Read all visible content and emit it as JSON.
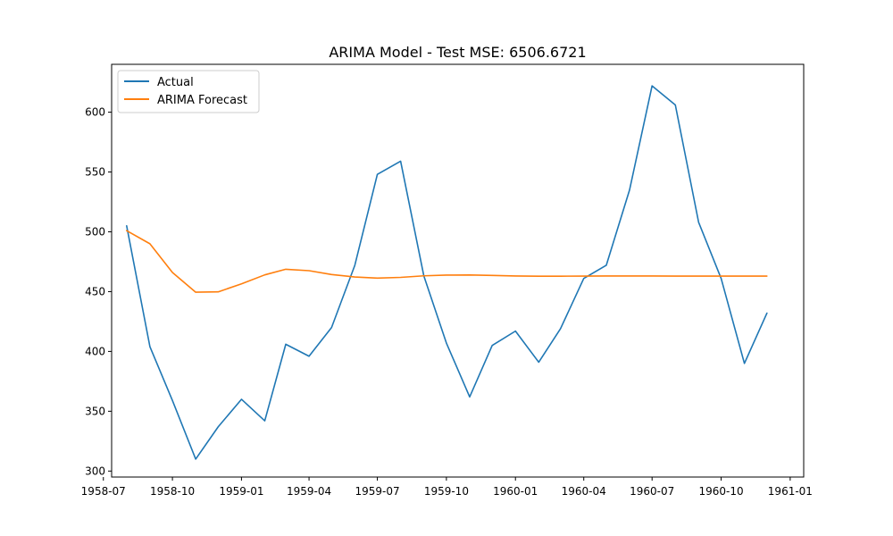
{
  "chart_data": {
    "type": "line",
    "title": "ARIMA Model - Test MSE: 6506.6721",
    "xlabel": "",
    "ylabel": "",
    "x": [
      "1958-08",
      "1958-09",
      "1958-10",
      "1958-11",
      "1958-12",
      "1959-01",
      "1959-02",
      "1959-03",
      "1959-04",
      "1959-05",
      "1959-06",
      "1959-07",
      "1959-08",
      "1959-09",
      "1959-10",
      "1959-11",
      "1959-12",
      "1960-01",
      "1960-02",
      "1960-03",
      "1960-04",
      "1960-05",
      "1960-06",
      "1960-07",
      "1960-08",
      "1960-09",
      "1960-10",
      "1960-11",
      "1960-12"
    ],
    "series": [
      {
        "name": "Actual",
        "color": "#1f77b4",
        "values": [
          505,
          404,
          359,
          310,
          337,
          360,
          342,
          406,
          396,
          420,
          472,
          548,
          559,
          463,
          407,
          362,
          405,
          417,
          391,
          419,
          461,
          472,
          535,
          622,
          606,
          508,
          461,
          390,
          432
        ]
      },
      {
        "name": "ARIMA Forecast",
        "color": "#ff7f0e",
        "values": [
          501,
          490,
          466,
          449.5,
          449.8,
          456.5,
          464,
          468.7,
          467.5,
          464.3,
          462.2,
          461.3,
          461.9,
          463.2,
          463.8,
          463.9,
          463.5,
          463.1,
          462.9,
          462.9,
          463.0,
          463.1,
          463.1,
          463.1,
          463.0,
          463.0,
          463.0,
          463.0,
          463.0
        ]
      }
    ],
    "xlim": [
      "1958-07-12",
      "1961-01-19"
    ],
    "ylim": [
      295,
      640
    ],
    "yticks": [
      300,
      350,
      400,
      450,
      500,
      550,
      600
    ],
    "xticks": [
      "1958-07",
      "1958-10",
      "1959-01",
      "1959-04",
      "1959-07",
      "1959-10",
      "1960-01",
      "1960-04",
      "1960-07",
      "1960-10",
      "1961-01"
    ],
    "grid": false,
    "legend_position": "upper-left"
  }
}
